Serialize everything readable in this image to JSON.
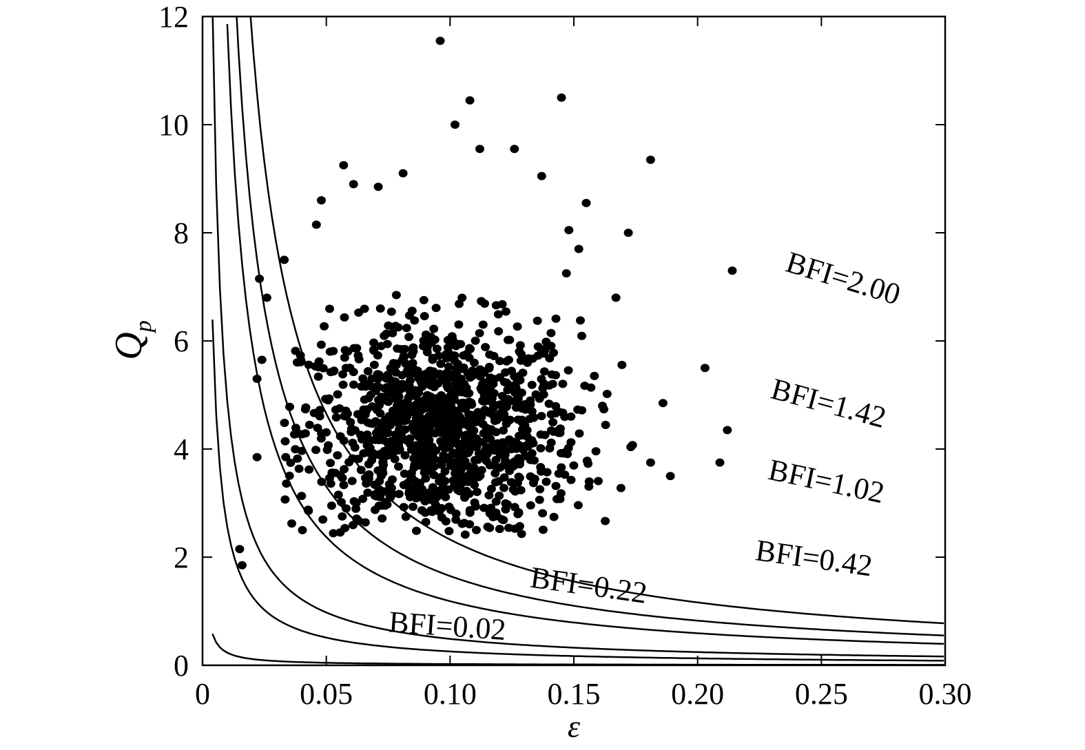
{
  "chart_data": {
    "type": "scatter",
    "title": "",
    "xlabel": "ε",
    "ylabel_main": "Q",
    "ylabel_sub": "p",
    "xlim": [
      0,
      0.3
    ],
    "ylim": [
      0,
      12
    ],
    "x_ticks": [
      0,
      0.05,
      0.1,
      0.15,
      0.2,
      0.25,
      0.3
    ],
    "x_tick_labels": [
      "0",
      "0.05",
      "0.10",
      "0.15",
      "0.20",
      "0.25",
      "0.30"
    ],
    "y_ticks": [
      0,
      2,
      4,
      6,
      8,
      10,
      12
    ],
    "y_tick_labels": [
      "0",
      "2",
      "4",
      "6",
      "8",
      "10",
      "12"
    ],
    "grid": false,
    "point_color": "#000000",
    "curves": [
      {
        "label": "BFI=0.02",
        "k": 0.02
      },
      {
        "label": "BFI=0.22",
        "k": 0.22
      },
      {
        "label": "BFI=0.42",
        "k": 0.42
      },
      {
        "label": "BFI=1.02",
        "k": 1.02
      },
      {
        "label": "BFI=1.42",
        "k": 1.42
      },
      {
        "label": "BFI=2.00",
        "k": 2.0
      }
    ],
    "scatter_outliers": [
      {
        "x": 0.096,
        "y": 11.55
      },
      {
        "x": 0.145,
        "y": 10.5
      },
      {
        "x": 0.108,
        "y": 10.45
      },
      {
        "x": 0.102,
        "y": 10.0
      },
      {
        "x": 0.112,
        "y": 9.55
      },
      {
        "x": 0.126,
        "y": 9.55
      },
      {
        "x": 0.181,
        "y": 9.35
      },
      {
        "x": 0.155,
        "y": 8.55
      },
      {
        "x": 0.137,
        "y": 9.05
      },
      {
        "x": 0.172,
        "y": 8.0
      },
      {
        "x": 0.214,
        "y": 7.3
      },
      {
        "x": 0.167,
        "y": 6.8
      },
      {
        "x": 0.203,
        "y": 5.5
      },
      {
        "x": 0.186,
        "y": 4.85
      },
      {
        "x": 0.212,
        "y": 4.35
      },
      {
        "x": 0.209,
        "y": 3.75
      },
      {
        "x": 0.189,
        "y": 3.5
      },
      {
        "x": 0.181,
        "y": 3.75
      },
      {
        "x": 0.015,
        "y": 2.15
      },
      {
        "x": 0.016,
        "y": 1.85
      },
      {
        "x": 0.022,
        "y": 5.3
      },
      {
        "x": 0.023,
        "y": 7.15
      },
      {
        "x": 0.022,
        "y": 3.85
      },
      {
        "x": 0.024,
        "y": 5.65
      },
      {
        "x": 0.026,
        "y": 6.8
      },
      {
        "x": 0.057,
        "y": 9.25
      },
      {
        "x": 0.061,
        "y": 8.9
      },
      {
        "x": 0.081,
        "y": 9.1
      },
      {
        "x": 0.048,
        "y": 8.6
      },
      {
        "x": 0.046,
        "y": 8.15
      },
      {
        "x": 0.033,
        "y": 7.5
      },
      {
        "x": 0.071,
        "y": 8.85
      },
      {
        "x": 0.147,
        "y": 7.25
      },
      {
        "x": 0.148,
        "y": 8.05
      },
      {
        "x": 0.152,
        "y": 7.7
      }
    ],
    "cluster": {
      "center_x": 0.096,
      "center_y": 4.35,
      "sd_x": 0.028,
      "sd_y": 1.0,
      "n": 1150,
      "x_range": [
        0.032,
        0.175
      ],
      "y_range": [
        2.4,
        7.6
      ]
    }
  }
}
